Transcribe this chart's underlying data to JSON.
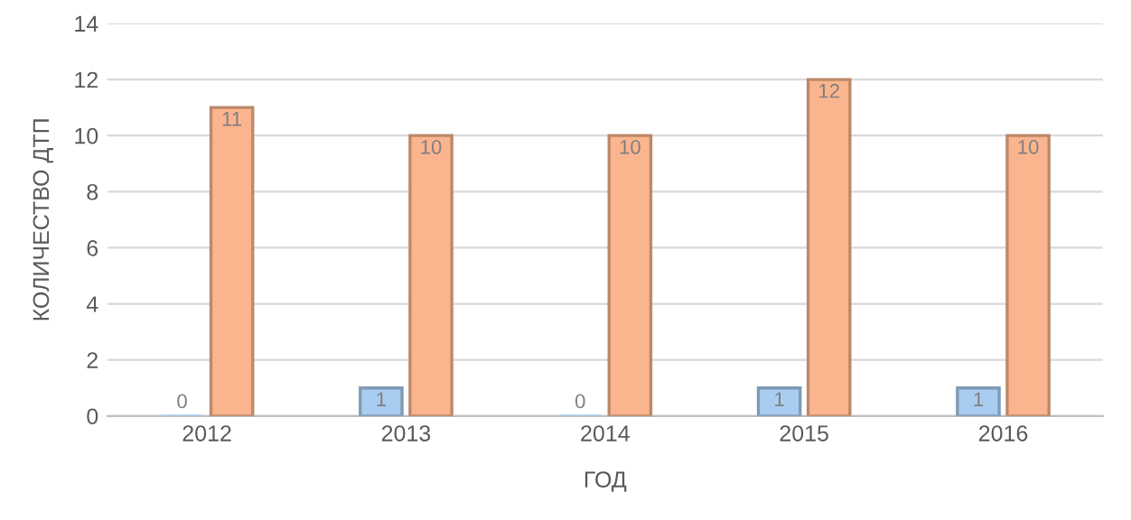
{
  "chart_data": {
    "type": "bar",
    "xlabel": "ГОД",
    "ylabel": "КОЛИЧЕСТВО ДТП",
    "categories": [
      "2012",
      "2013",
      "2014",
      "2015",
      "2016"
    ],
    "series": [
      {
        "color": "#a9cdf0",
        "values": [
          0,
          1,
          0,
          1,
          1
        ]
      },
      {
        "color": "#fbb58e",
        "values": [
          11,
          10,
          10,
          12,
          10
        ]
      }
    ],
    "ylim": [
      0,
      14
    ],
    "yticks": [
      0,
      2,
      4,
      6,
      8,
      10,
      12,
      14
    ],
    "grid": "y",
    "data_labels": true
  }
}
